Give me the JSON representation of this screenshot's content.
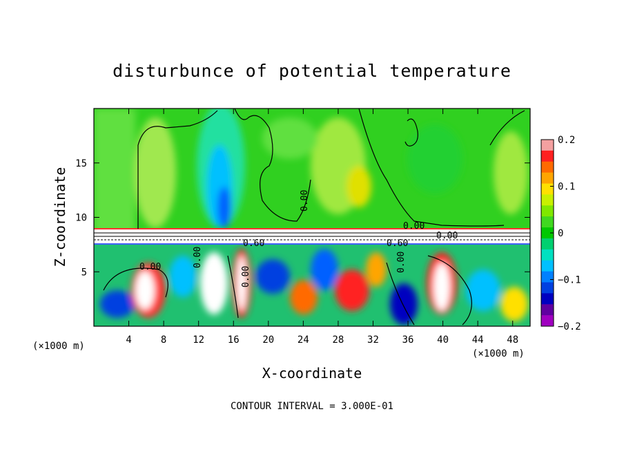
{
  "chart_data": {
    "type": "heatmap",
    "title": "disturbunce of potential temperature",
    "xlabel": "X-coordinate",
    "ylabel": "Z-coordinate",
    "x_unit": "(×1000 m)",
    "x_unit_right": "(×1000 m)",
    "xlim": [
      0,
      50
    ],
    "ylim": [
      0,
      20
    ],
    "xticks": [
      4,
      8,
      12,
      16,
      20,
      24,
      28,
      32,
      36,
      40,
      44,
      48
    ],
    "yticks": [
      5,
      10,
      15
    ],
    "colorbar": {
      "range": [
        -0.2,
        0.2
      ],
      "tick_values": [
        0.2,
        0.1,
        0,
        -0.1,
        -0.2
      ],
      "tick_labels": [
        "0.2",
        "0.1",
        "0",
        "−0.1",
        "−0.2"
      ],
      "colors": [
        "#f4a0a0",
        "#ff2020",
        "#ff6a00",
        "#ffa500",
        "#ffe000",
        "#c8f000",
        "#80e800",
        "#40d820",
        "#00c800",
        "#00d070",
        "#00e0c0",
        "#00c0ff",
        "#0080ff",
        "#0040e0",
        "#0000c0",
        "#6000a0",
        "#a000c0"
      ]
    },
    "contour_labels": [
      "0.00",
      "0.00",
      "0.60",
      "0.00",
      "0.00",
      "0.00",
      "0.60",
      "0.00",
      "0.00"
    ],
    "footer": "CONTOUR INTERVAL = 3.000E-01"
  }
}
